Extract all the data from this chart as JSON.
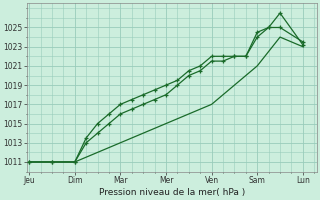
{
  "background_color": "#cceedd",
  "grid_color": "#99ccbb",
  "line_color": "#1a6b2a",
  "title": "Pression niveau de la mer( hPa )",
  "ylabel_values": [
    1011,
    1013,
    1015,
    1017,
    1019,
    1021,
    1023,
    1025
  ],
  "x_labels": [
    "Jeu",
    "Dim",
    "Mar",
    "Mer",
    "Ven",
    "Sam",
    "Lun"
  ],
  "x_positions": [
    0,
    1,
    2,
    3,
    4,
    5,
    6
  ],
  "ylim": [
    1010.0,
    1027.5
  ],
  "xlim": [
    -0.05,
    6.3
  ],
  "line1_x": [
    0,
    0.5,
    1.0,
    1.25,
    1.5,
    1.75,
    2.0,
    2.25,
    2.5,
    2.75,
    3.0,
    3.25,
    3.5,
    3.75,
    4.0,
    4.25,
    4.5,
    4.75,
    5.0,
    5.25,
    5.5,
    6.0
  ],
  "line1_y": [
    1011,
    1011,
    1011,
    1013,
    1014,
    1015,
    1016,
    1016.5,
    1017,
    1017.5,
    1018,
    1019,
    1020,
    1020.5,
    1021.5,
    1021.5,
    1022,
    1022,
    1024,
    1025,
    1026.5,
    1023.2
  ],
  "line2_x": [
    0,
    0.5,
    1.0,
    1.25,
    1.5,
    1.75,
    2.0,
    2.25,
    2.5,
    2.75,
    3.0,
    3.25,
    3.5,
    3.75,
    4.0,
    4.25,
    4.5,
    4.75,
    5.0,
    5.25,
    5.5,
    6.0
  ],
  "line2_y": [
    1011,
    1011,
    1011,
    1013.5,
    1015,
    1016,
    1017,
    1017.5,
    1018,
    1018.5,
    1019,
    1019.5,
    1020.5,
    1021,
    1022,
    1022,
    1022,
    1022,
    1024.5,
    1025,
    1025,
    1023.5
  ],
  "line3_x": [
    0,
    1,
    2,
    3,
    4,
    5,
    5.5,
    6.0
  ],
  "line3_y": [
    1011,
    1011,
    1013,
    1015,
    1017,
    1021,
    1024,
    1023
  ]
}
